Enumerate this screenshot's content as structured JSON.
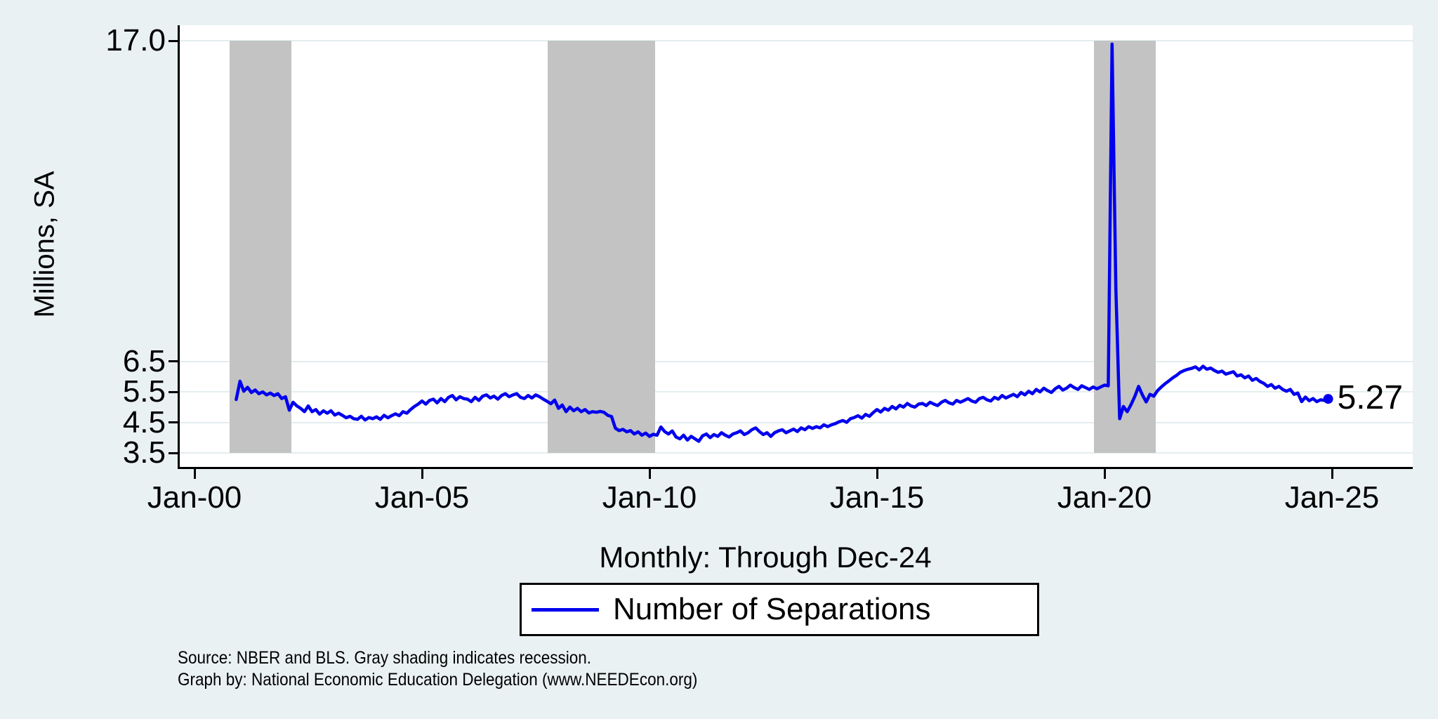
{
  "window": {
    "background": "#EAF1F3",
    "plot_background": "#FFFFFF",
    "recession_band_color": "#C3C3C3",
    "grid_color": "#E3EDEF"
  },
  "subtitle": "Monthly: Through Dec-24",
  "legend": {
    "label": "Number of Separations",
    "line_color": "#0000EE"
  },
  "end_label": "5.27",
  "notes": {
    "line1": "Source: NBER and BLS. Gray shading indicates recession.",
    "line2": "Graph by: National Economic Education Delegation (www.NEEDEcon.org)"
  },
  "chart_data": {
    "type": "line",
    "title": "",
    "subtitle": "Monthly: Through Dec-24",
    "xlabel": "",
    "ylabel": "Millions, SA",
    "grid": "horizontal",
    "legend_position": "bottom",
    "y_ticks": [
      {
        "label": "3.5",
        "value": 3.5
      },
      {
        "label": "4.5",
        "value": 4.5
      },
      {
        "label": "5.5",
        "value": 5.5
      },
      {
        "label": "6.5",
        "value": 6.5
      },
      {
        "label": "17.0",
        "value": 17.0
      }
    ],
    "x_ticks": [
      {
        "label": "Jan-00",
        "month": 0
      },
      {
        "label": "Jan-05",
        "month": 60
      },
      {
        "label": "Jan-10",
        "month": 120
      },
      {
        "label": "Jan-15",
        "month": 180
      },
      {
        "label": "Jan-20",
        "month": 240
      },
      {
        "label": "Jan-25",
        "month": 300
      }
    ],
    "recessions_month_ranges": [
      [
        9.3,
        25.6
      ],
      [
        93.2,
        121.4
      ],
      [
        237.2,
        253.5
      ]
    ],
    "last_value_label": "5.27",
    "series": [
      {
        "name": "Number of Separations",
        "color": "#0000EE",
        "frequency": "monthly",
        "start": "Dec-2000",
        "start_month_index": 11,
        "end": "Dec-2024",
        "values": [
          5.25,
          5.85,
          5.52,
          5.65,
          5.48,
          5.56,
          5.44,
          5.5,
          5.4,
          5.46,
          5.38,
          5.44,
          5.28,
          5.34,
          4.9,
          5.16,
          5.04,
          4.96,
          4.85,
          5.04,
          4.85,
          4.92,
          4.77,
          4.88,
          4.8,
          4.88,
          4.74,
          4.8,
          4.73,
          4.65,
          4.7,
          4.62,
          4.6,
          4.7,
          4.58,
          4.66,
          4.62,
          4.68,
          4.6,
          4.73,
          4.65,
          4.72,
          4.78,
          4.72,
          4.85,
          4.8,
          4.92,
          5.02,
          5.1,
          5.2,
          5.1,
          5.22,
          5.26,
          5.14,
          5.28,
          5.18,
          5.32,
          5.38,
          5.24,
          5.34,
          5.28,
          5.26,
          5.18,
          5.32,
          5.22,
          5.36,
          5.4,
          5.3,
          5.36,
          5.26,
          5.38,
          5.44,
          5.34,
          5.4,
          5.44,
          5.32,
          5.28,
          5.38,
          5.3,
          5.4,
          5.34,
          5.26,
          5.19,
          5.11,
          5.23,
          4.96,
          5.07,
          4.85,
          5.0,
          4.88,
          4.96,
          4.85,
          4.92,
          4.81,
          4.85,
          4.83,
          4.86,
          4.83,
          4.73,
          4.69,
          4.31,
          4.23,
          4.27,
          4.19,
          4.23,
          4.12,
          4.19,
          4.08,
          4.15,
          4.04,
          4.11,
          4.08,
          4.35,
          4.2,
          4.12,
          4.22,
          4.02,
          3.96,
          4.08,
          3.92,
          4.04,
          3.96,
          3.88,
          4.06,
          4.12,
          4.0,
          4.1,
          4.04,
          4.16,
          4.08,
          4.02,
          4.12,
          4.16,
          4.22,
          4.1,
          4.16,
          4.26,
          4.32,
          4.2,
          4.1,
          4.16,
          4.04,
          4.16,
          4.22,
          4.26,
          4.16,
          4.22,
          4.28,
          4.2,
          4.32,
          4.26,
          4.36,
          4.3,
          4.36,
          4.32,
          4.42,
          4.36,
          4.42,
          4.46,
          4.52,
          4.56,
          4.5,
          4.62,
          4.66,
          4.72,
          4.64,
          4.76,
          4.7,
          4.82,
          4.92,
          4.84,
          4.96,
          4.9,
          5.02,
          4.94,
          5.06,
          5.0,
          5.12,
          5.04,
          5.0,
          5.1,
          5.12,
          5.05,
          5.16,
          5.1,
          5.05,
          5.16,
          5.22,
          5.14,
          5.1,
          5.22,
          5.16,
          5.22,
          5.28,
          5.2,
          5.16,
          5.28,
          5.32,
          5.24,
          5.2,
          5.32,
          5.26,
          5.38,
          5.3,
          5.36,
          5.42,
          5.34,
          5.48,
          5.4,
          5.52,
          5.44,
          5.58,
          5.5,
          5.62,
          5.54,
          5.48,
          5.6,
          5.68,
          5.56,
          5.62,
          5.72,
          5.64,
          5.58,
          5.7,
          5.64,
          5.58,
          5.66,
          5.6,
          5.66,
          5.72,
          5.7,
          16.9,
          8.9,
          4.62,
          5.02,
          4.85,
          5.08,
          5.35,
          5.68,
          5.4,
          5.17,
          5.42,
          5.36,
          5.54,
          5.66,
          5.77,
          5.86,
          5.96,
          6.04,
          6.14,
          6.2,
          6.24,
          6.27,
          6.32,
          6.22,
          6.34,
          6.24,
          6.28,
          6.2,
          6.14,
          6.18,
          6.08,
          6.12,
          6.16,
          6.02,
          6.06,
          5.96,
          6.02,
          5.88,
          5.94,
          5.84,
          5.78,
          5.68,
          5.74,
          5.62,
          5.68,
          5.58,
          5.52,
          5.58,
          5.42,
          5.46,
          5.18,
          5.33,
          5.21,
          5.28,
          5.18,
          5.24,
          5.22,
          5.27
        ]
      }
    ]
  }
}
